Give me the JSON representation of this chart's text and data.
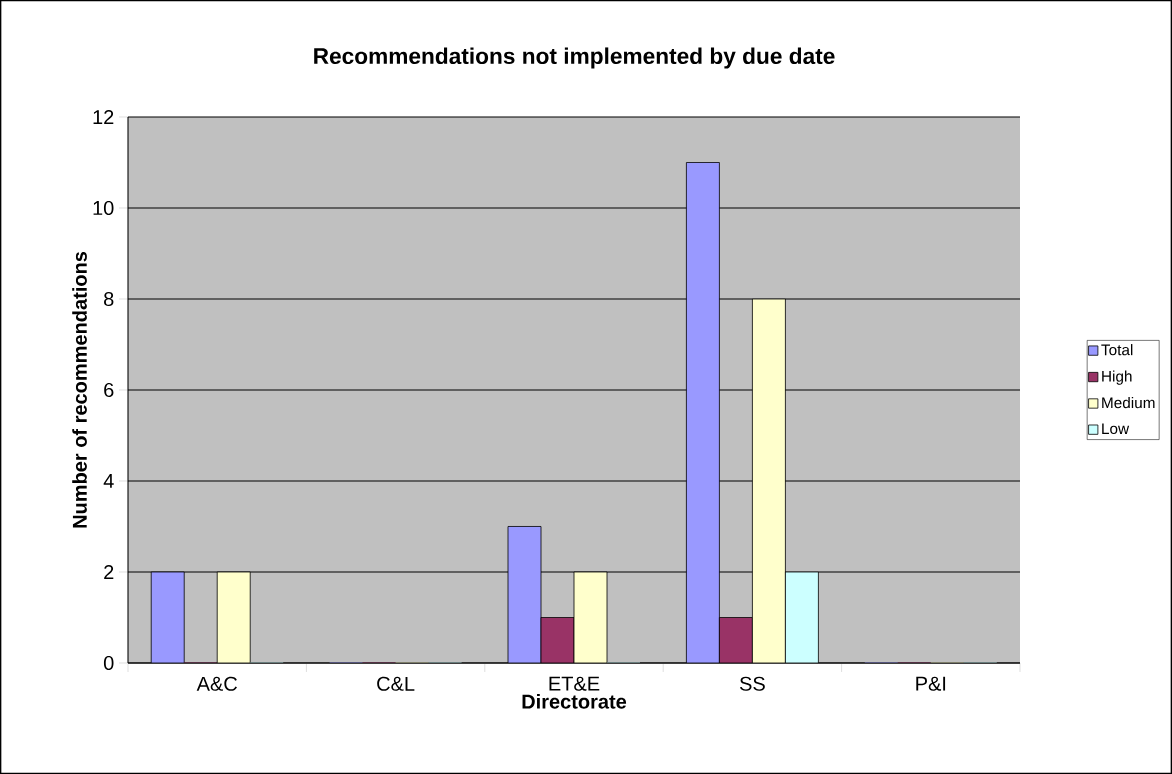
{
  "chart_data": {
    "type": "bar",
    "title": "Recommendations not implemented by due date",
    "xlabel": "Directorate",
    "ylabel": "Number of recommendations",
    "categories": [
      "A&C",
      "C&L",
      "ET&E",
      "SS",
      "P&I"
    ],
    "series": [
      {
        "name": "Total",
        "color": "#9999ff",
        "values": [
          2,
          0,
          3,
          11,
          0
        ]
      },
      {
        "name": "High",
        "color": "#993366",
        "values": [
          0,
          0,
          1,
          1,
          0
        ]
      },
      {
        "name": "Medium",
        "color": "#ffffcc",
        "values": [
          2,
          0,
          2,
          8,
          0
        ]
      },
      {
        "name": "Low",
        "color": "#ccffff",
        "values": [
          0,
          0,
          0,
          2,
          0
        ]
      }
    ],
    "ylim": [
      0,
      12
    ],
    "yticks": [
      0,
      2,
      4,
      6,
      8,
      10,
      12
    ],
    "grid": "y",
    "legend": "right"
  }
}
